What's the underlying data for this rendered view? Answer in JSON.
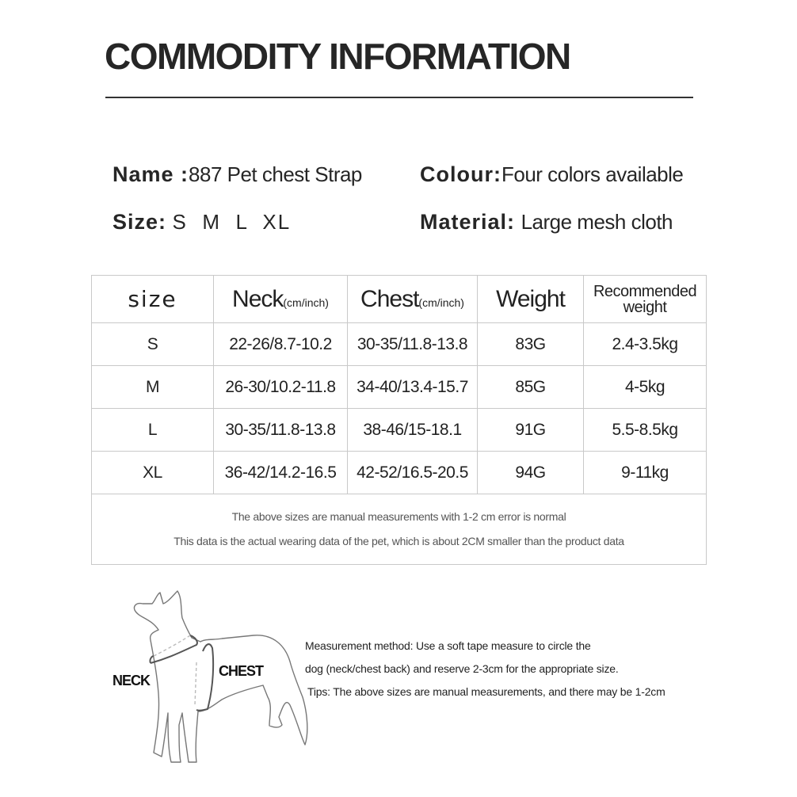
{
  "title": "COMMODITY INFORMATION",
  "info": {
    "name_label": "Name :",
    "name_value": "887 Pet chest Strap",
    "colour_label": "Colour:",
    "colour_value": "Four colors available",
    "size_label": "Size:",
    "size_value": "S  M  L  XL",
    "material_label": "Material:",
    "material_value": "Large mesh cloth"
  },
  "table": {
    "headers": {
      "size": "size",
      "neck": "Neck",
      "neck_unit": "(cm/inch)",
      "chest": "Chest",
      "chest_unit": "(cm/inch)",
      "weight": "Weight",
      "recommended": "Recommended weight"
    },
    "rows": [
      [
        "S",
        "22-26/8.7-10.2",
        "30-35/11.8-13.8",
        "83G",
        "2.4-3.5kg"
      ],
      [
        "M",
        "26-30/10.2-11.8",
        "34-40/13.4-15.7",
        "85G",
        "4-5kg"
      ],
      [
        "L",
        "30-35/11.8-13.8",
        "38-46/15-18.1",
        "91G",
        "5.5-8.5kg"
      ],
      [
        "XL",
        "36-42/14.2-16.5",
        "42-52/16.5-20.5",
        "94G",
        "9-11kg"
      ]
    ],
    "note1": "The above sizes are manual measurements with 1-2 cm error is normal",
    "note2": "This data is the actual wearing data of the pet, which is about 2CM smaller than the product data"
  },
  "diagram": {
    "neck_label": "NECK",
    "chest_label": "CHEST"
  },
  "method": {
    "line1": "Measurement method: Use a soft tape measure to circle the",
    "line2": "dog (neck/chest back) and reserve 2-3cm for the appropriate size.",
    "line3": "Tips: The above sizes are manual measurements, and there may be 1-2cm"
  }
}
